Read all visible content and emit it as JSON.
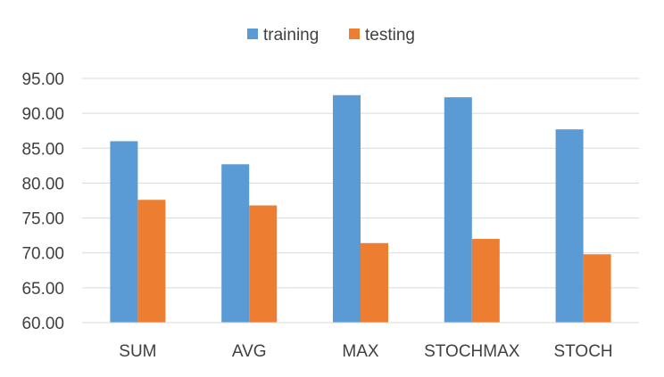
{
  "chart_data": {
    "type": "bar",
    "categories": [
      "SUM",
      "AVG",
      "MAX",
      "STOCHMAX",
      "STOCH"
    ],
    "series": [
      {
        "name": "training",
        "color": "#5B9BD5",
        "values": [
          86.0,
          82.7,
          92.6,
          92.3,
          87.7
        ]
      },
      {
        "name": "testing",
        "color": "#ED7D31",
        "values": [
          77.6,
          76.8,
          71.4,
          72.0,
          69.8
        ]
      }
    ],
    "yticks": [
      "60.00",
      "65.00",
      "70.00",
      "75.00",
      "80.00",
      "85.00",
      "90.00",
      "95.00"
    ],
    "ylim": [
      60,
      95
    ],
    "grid": true,
    "legend_position": "top-center"
  }
}
